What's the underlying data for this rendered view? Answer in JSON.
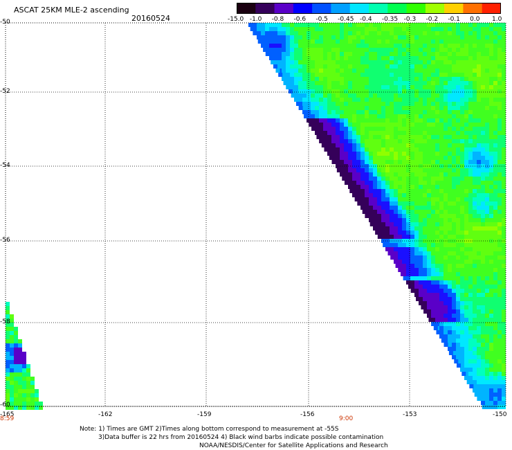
{
  "header": {
    "title": "ASCAT 25KM MLE-2 ascending",
    "date": "20160524"
  },
  "colorbar": {
    "labels": [
      "-15.0",
      "-1.0",
      "-0.8",
      "-0.6",
      "-0.5",
      "-0.45",
      "-0.4",
      "-0.35",
      "-0.3",
      "-0.2",
      "-0.1",
      "0.0",
      "1.0"
    ],
    "colors": [
      "#1a0010",
      "#35005a",
      "#5a00c8",
      "#0000ff",
      "#0050ff",
      "#00a0ff",
      "#00e6ff",
      "#00ffb0",
      "#00ff50",
      "#30ff00",
      "#a0ff00",
      "#ffd000",
      "#ff7000",
      "#ff2000"
    ]
  },
  "axes": {
    "lat_labels": [
      "-50",
      "-52",
      "-54",
      "-56",
      "-58",
      "-60"
    ],
    "lon_labels": [
      "-165",
      "-162",
      "-159",
      "-156",
      "-153",
      "-150"
    ]
  },
  "time_labels": [
    "8:59",
    "9:00"
  ],
  "notes": {
    "line1": "Note: 1) Times are GMT 2)Times along bottom correspond to measurement at -55S",
    "line2": "3)Data buffer is 22 hrs from 20160524 4) Black wind barbs indicate possible contamination",
    "line3": "NOAA/NESDIS/Center for Satellite Applications and Research"
  }
}
